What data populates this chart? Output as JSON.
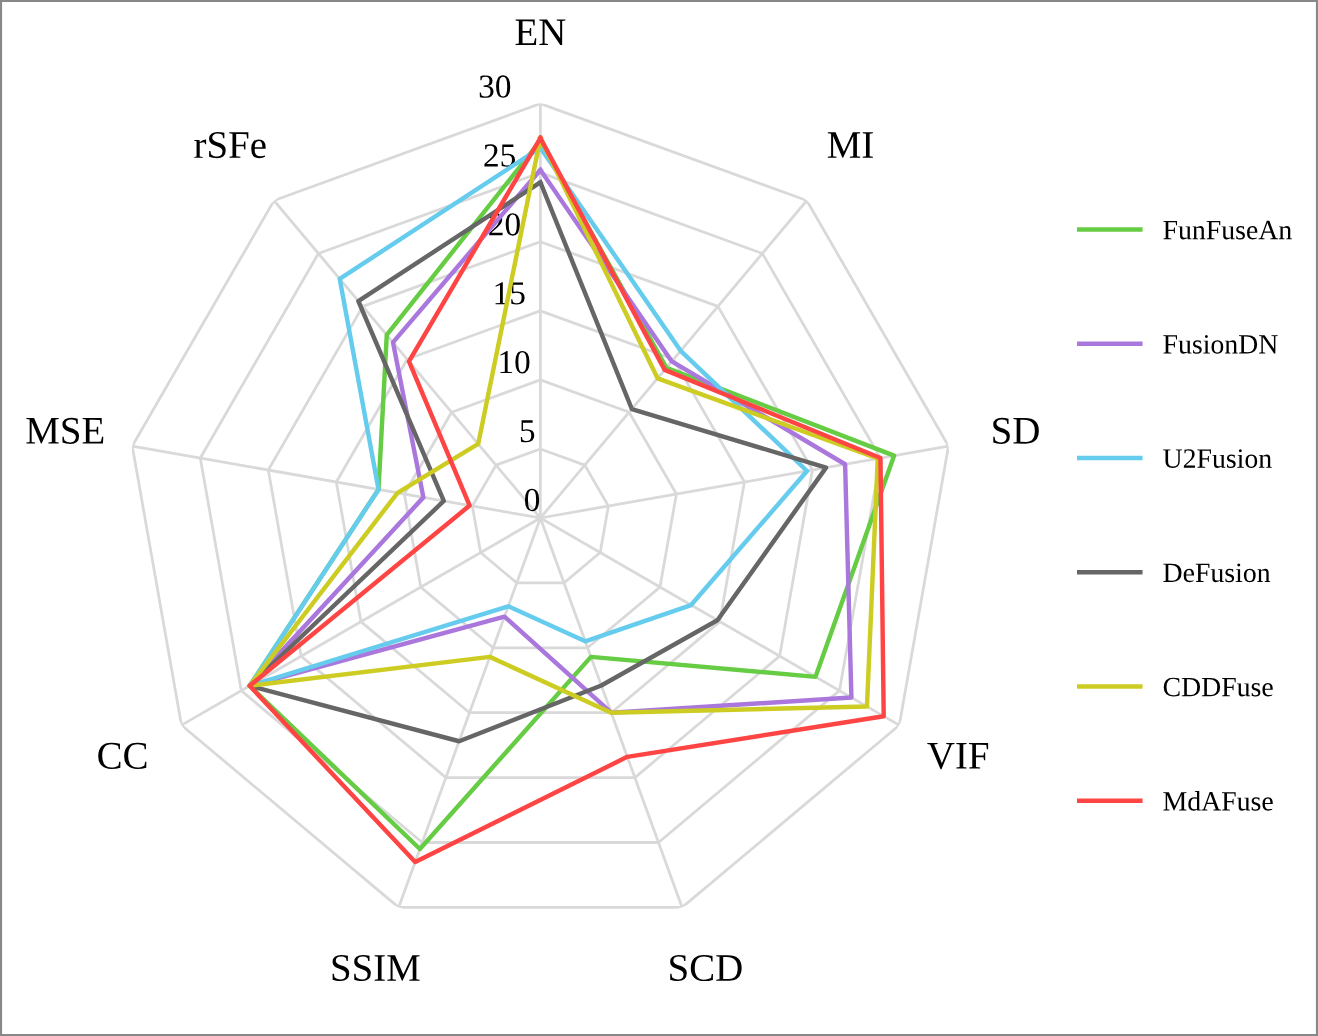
{
  "chart_data": {
    "type": "radar",
    "categories": [
      "EN",
      "MI",
      "SD",
      "VIF",
      "SCD",
      "SSIM",
      "CC",
      "MSE",
      "rSFe"
    ],
    "ylim": [
      0,
      30
    ],
    "yticks": [
      0,
      5,
      10,
      15,
      20,
      25,
      30
    ],
    "grid": true,
    "legend": "right",
    "marker": "none",
    "series": [
      {
        "name": "FunFuseAn",
        "color": "#66cc44",
        "values": [
          27.3,
          14.2,
          26.0,
          23.0,
          10.7,
          25.5,
          24.3,
          11.9,
          17.3
        ]
      },
      {
        "name": "FusionDN",
        "color": "#aa77dd",
        "values": [
          25.2,
          14.8,
          22.4,
          26.0,
          15.0,
          7.6,
          24.3,
          8.6,
          16.6
        ]
      },
      {
        "name": "U2Fusion",
        "color": "#66ccee",
        "values": [
          26.8,
          15.8,
          19.6,
          12.6,
          9.5,
          6.8,
          24.3,
          11.9,
          22.6
        ]
      },
      {
        "name": "DeFusion",
        "color": "#666666",
        "values": [
          24.3,
          10.3,
          21.0,
          14.8,
          12.9,
          17.2,
          24.3,
          7.1,
          20.5
        ]
      },
      {
        "name": "CDDFuse",
        "color": "#cccc22",
        "values": [
          27.5,
          13.2,
          24.8,
          27.3,
          15.0,
          10.7,
          24.3,
          10.5,
          7.0
        ]
      },
      {
        "name": "MdAFuse",
        "color": "#ff4444",
        "values": [
          27.5,
          14.0,
          25.0,
          28.7,
          18.4,
          26.5,
          24.3,
          5.2,
          14.8
        ]
      }
    ]
  }
}
